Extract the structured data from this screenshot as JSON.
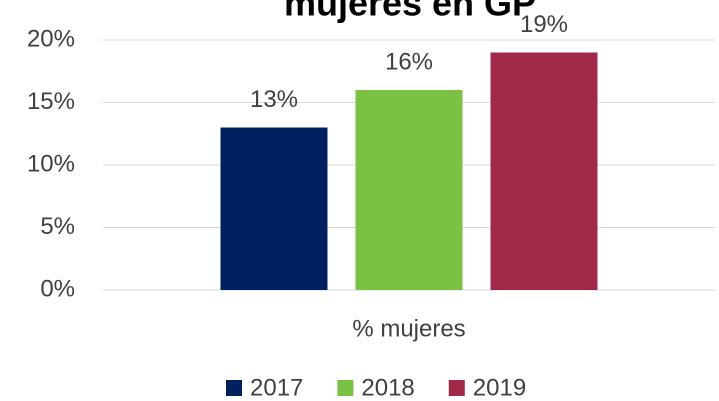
{
  "chart_data": {
    "type": "bar",
    "title": "mujeres en GP",
    "categories": [
      "% mujeres"
    ],
    "series": [
      {
        "name": "2017",
        "color": "#002060",
        "values": [
          13
        ],
        "value_labels": [
          "13%"
        ]
      },
      {
        "name": "2018",
        "color": "#7bc143",
        "values": [
          16
        ],
        "value_labels": [
          "16%"
        ]
      },
      {
        "name": "2019",
        "color": "#a0294a",
        "values": [
          19
        ],
        "value_labels": [
          "19%"
        ]
      }
    ],
    "ylim": [
      0,
      20
    ],
    "yticks": [
      {
        "value": 0,
        "label": "0%"
      },
      {
        "value": 5,
        "label": "5%"
      },
      {
        "value": 10,
        "label": "10%"
      },
      {
        "value": 15,
        "label": "15%"
      },
      {
        "value": 20,
        "label": "20%"
      }
    ],
    "grid": true,
    "legend": "bottom"
  }
}
